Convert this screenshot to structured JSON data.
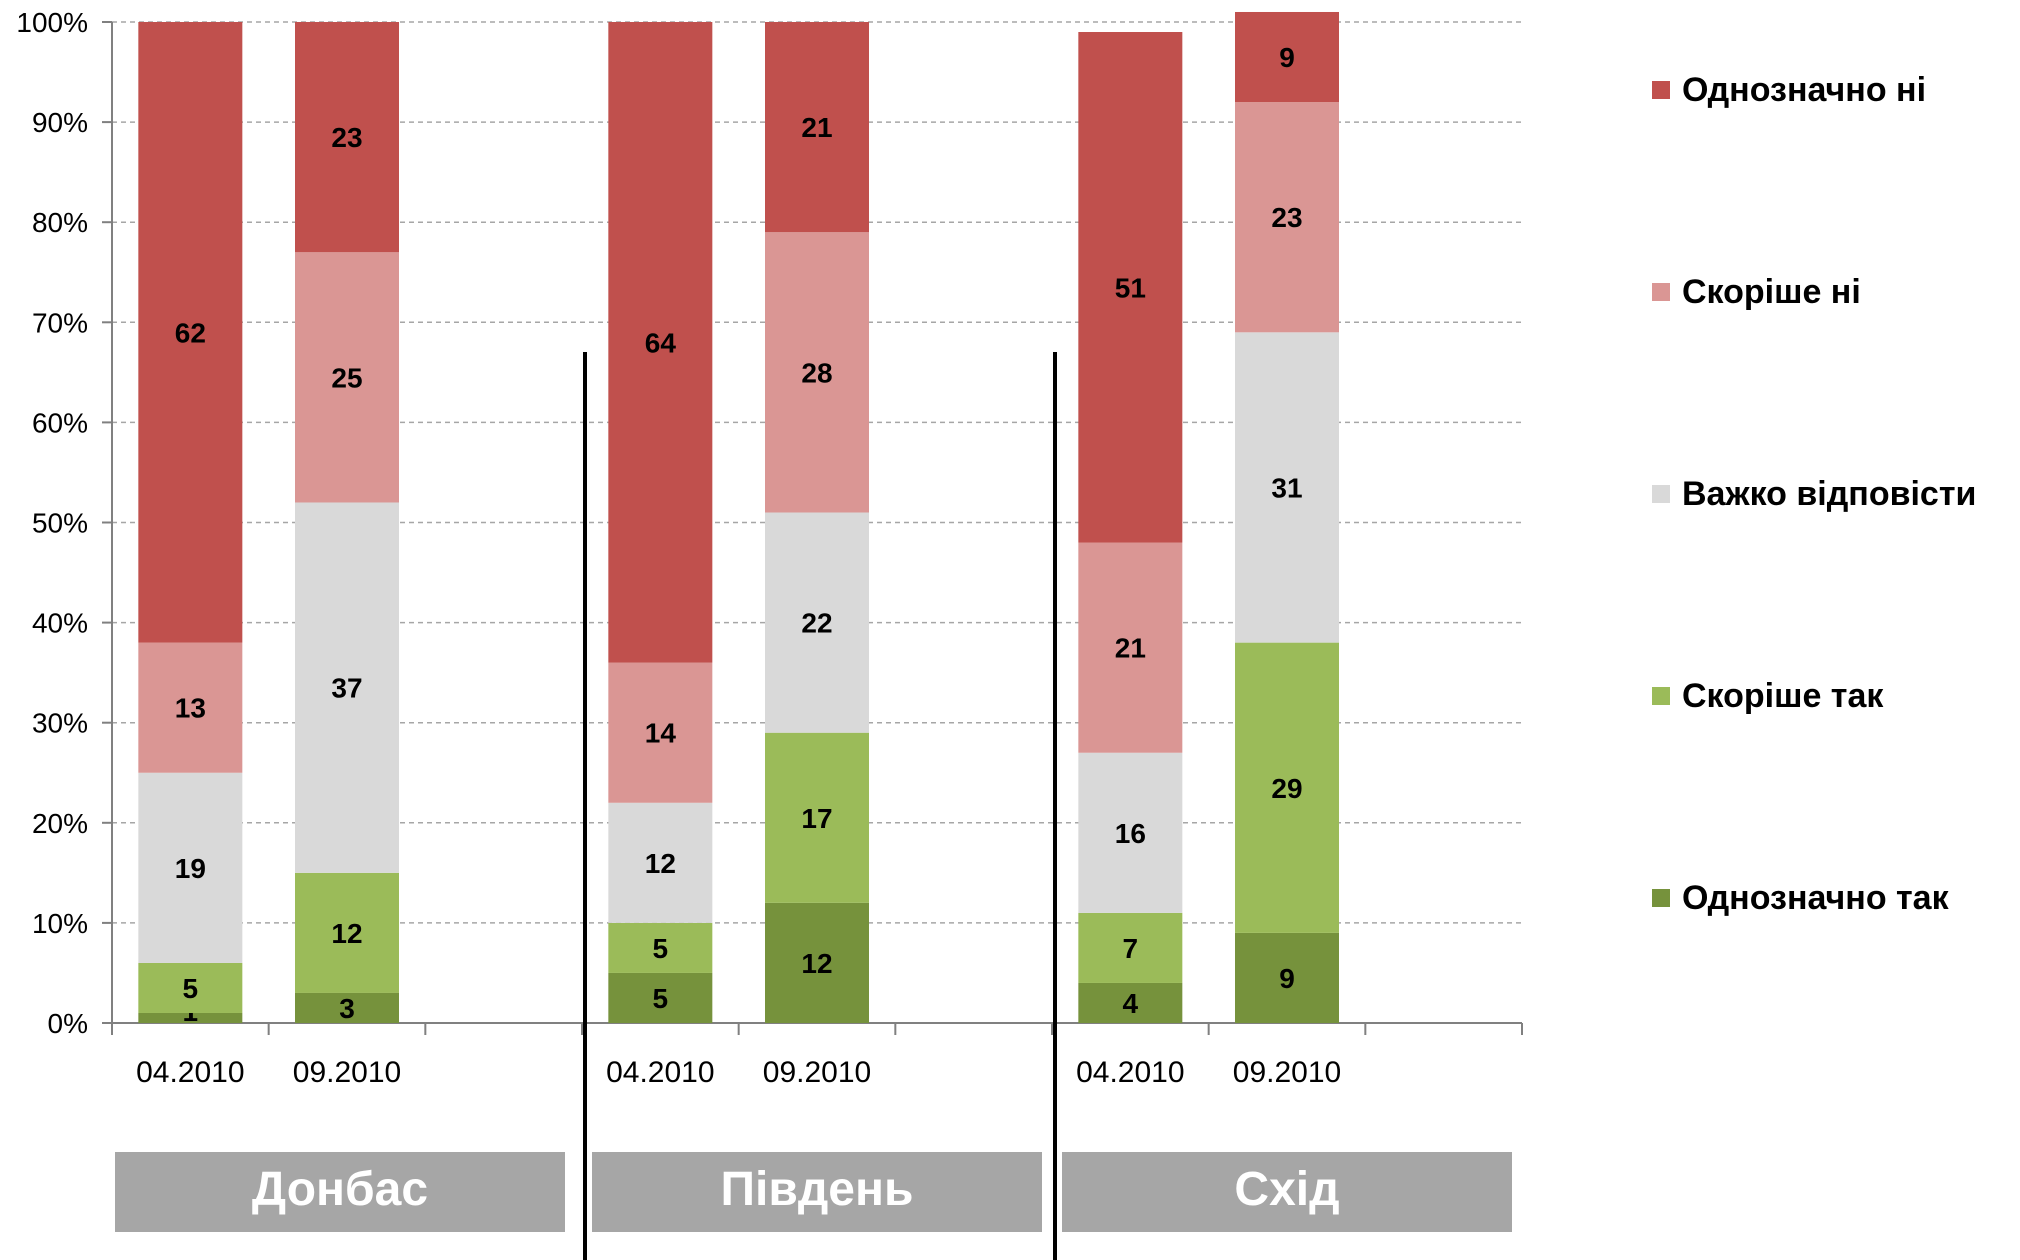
{
  "chart_data": {
    "type": "bar",
    "stacked": true,
    "percent_axis": true,
    "ylim": [
      0,
      100
    ],
    "y_ticks": [
      "0%",
      "10%",
      "20%",
      "30%",
      "40%",
      "50%",
      "60%",
      "70%",
      "80%",
      "90%",
      "100%"
    ],
    "grid": true,
    "legend_position": "right",
    "groups": [
      {
        "name": "Донбас",
        "categories": [
          "04.2010",
          "09.2010"
        ],
        "values": {
          "Однозначно так": [
            1,
            3
          ],
          "Скоріше так": [
            5,
            12
          ],
          "Важко відповісти": [
            19,
            37
          ],
          "Скоріше ні": [
            13,
            25
          ],
          "Однозначно ні": [
            62,
            23
          ]
        }
      },
      {
        "name": "Південь",
        "categories": [
          "04.2010",
          "09.2010"
        ],
        "values": {
          "Однозначно так": [
            5,
            12
          ],
          "Скоріше так": [
            5,
            17
          ],
          "Важко відповісти": [
            12,
            22
          ],
          "Скоріше ні": [
            14,
            28
          ],
          "Однозначно ні": [
            64,
            21
          ]
        }
      },
      {
        "name": "Схід",
        "categories": [
          "04.2010",
          "09.2010"
        ],
        "values": {
          "Однозначно так": [
            4,
            9
          ],
          "Скоріше так": [
            7,
            29
          ],
          "Важко відповісти": [
            16,
            31
          ],
          "Скоріше ні": [
            21,
            23
          ],
          "Однозначно ні": [
            51,
            9
          ]
        }
      }
    ],
    "series": [
      {
        "name": "Однозначно так",
        "color": "#76923C"
      },
      {
        "name": "Скоріше так",
        "color": "#9BBB59"
      },
      {
        "name": "Важко відповісти",
        "color": "#D9D9D9"
      },
      {
        "name": "Скоріше ні",
        "color": "#DA9694"
      },
      {
        "name": "Однозначно ні",
        "color": "#C0504D"
      }
    ],
    "legend_order": [
      "Однозначно ні",
      "Скоріше ні",
      "Важко відповісти",
      "Скоріше так",
      "Однозначно так"
    ],
    "group_label_bg": "#A6A6A6"
  }
}
